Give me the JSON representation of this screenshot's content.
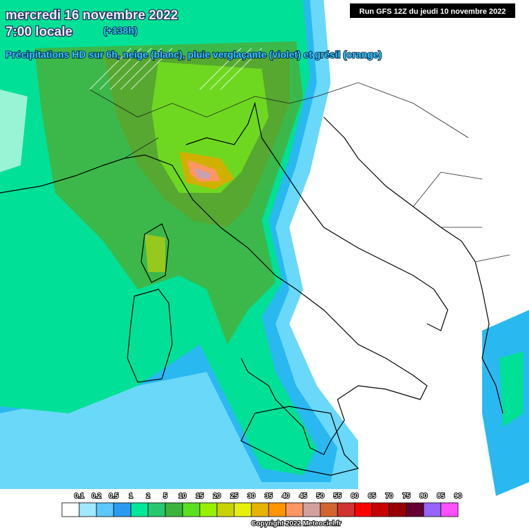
{
  "header": {
    "date": "mercredi 16 novembre 2022",
    "time": "7:00 locale",
    "lead": "(+138h)",
    "description": "Précipitations HD sur 6h, neige (blanc), pluie verglaçante (violet) et grésil (orange)",
    "run": "Run GFS 12Z du jeudi 10 novembre 2022"
  },
  "legend": {
    "labels": [
      "0.1",
      "0.2",
      "0.5",
      "1",
      "2",
      "5",
      "10",
      "15",
      "20",
      "25",
      "30",
      "35",
      "40",
      "45",
      "50",
      "55",
      "60",
      "65",
      "70",
      "75",
      "80",
      "85",
      "90"
    ],
    "colors": [
      "#ffffff",
      "#a0e8ff",
      "#5cc8ff",
      "#2a9cf0",
      "#00e89a",
      "#28c870",
      "#3cb43c",
      "#5ae01e",
      "#96f000",
      "#c8d200",
      "#e6f00a",
      "#e6b400",
      "#ff9600",
      "#ff9664",
      "#d2a0a0",
      "#d26432",
      "#d23232",
      "#ff0000",
      "#c80000",
      "#960000",
      "#640032",
      "#9664ff",
      "#ff50ff"
    ]
  },
  "footer": {
    "copyright": "Copyright 2022 Meteociel.fr"
  }
}
